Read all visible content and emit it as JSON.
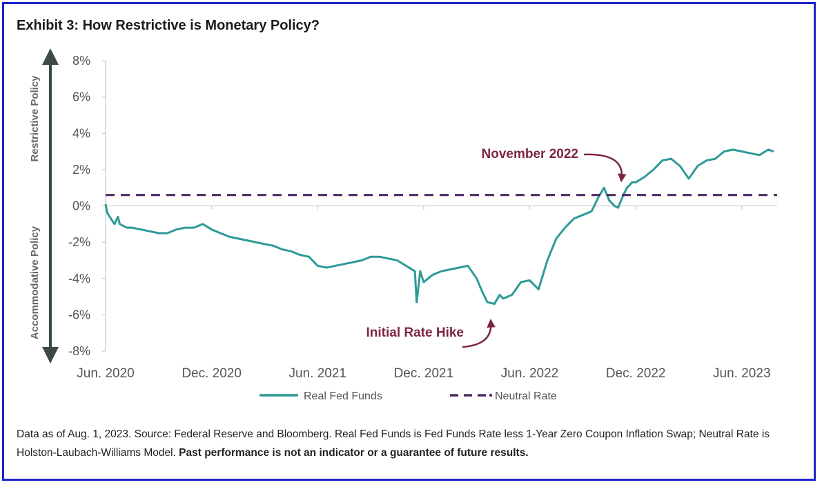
{
  "title": "Exhibit 3: How Restrictive is Monetary Policy?",
  "footnote": {
    "text": "Data as of Aug. 1, 2023. Source: Federal Reserve and Bloomberg. Real Fed Funds is Fed Funds Rate less 1-Year Zero Coupon Inflation Swap; Neutral Rate is Holston-Laubach-Williams Model. ",
    "bold": "Past performance is not an indicator or a guarantee of future results."
  },
  "colors": {
    "real": "#2e9a95",
    "neutral": "#4e2a64",
    "annotation": "#7c2446",
    "arrow": "#3d4a45",
    "frame": "#1d22c8"
  },
  "chart_data": {
    "type": "line",
    "title": "Exhibit 3: How Restrictive is Monetary Policy?",
    "xlabel": "",
    "ylabel": "",
    "ylim": [
      -8,
      8
    ],
    "y_ticks": [
      8,
      6,
      4,
      2,
      0,
      -2,
      -4,
      -6,
      -8
    ],
    "y_tick_labels": [
      "8%",
      "6%",
      "4%",
      "2%",
      "0%",
      "-2%",
      "-4%",
      "-6%",
      "-8%"
    ],
    "xlim": [
      0,
      38
    ],
    "x_ticks": [
      0,
      6,
      12,
      18,
      24,
      30,
      36
    ],
    "x_tick_labels": [
      "Jun. 2020",
      "Dec. 2020",
      "Jun. 2021",
      "Dec. 2021",
      "Jun. 2022",
      "Dec. 2022",
      "Jun. 2023"
    ],
    "x_units": "months since Jun. 2020",
    "side_labels": {
      "upper": "Restrictive Policy",
      "lower": "Accommodative Policy"
    },
    "legend": [
      "Real Fed Funds",
      "Neutral Rate"
    ],
    "legend_position": "bottom",
    "annotations": [
      {
        "text": "November 2022",
        "target_x": 29.2,
        "target_y": 1.0
      },
      {
        "text": "Initial Rate Hike",
        "target_x": 21.8,
        "target_y": -6.0
      }
    ],
    "series": [
      {
        "name": "Real Fed Funds",
        "style": "solid",
        "x": [
          0,
          0.1,
          0.3,
          0.5,
          0.7,
          0.8,
          1.0,
          1.2,
          1.5,
          2.0,
          2.5,
          3.0,
          3.5,
          4.0,
          4.5,
          5.0,
          5.5,
          6.0,
          6.5,
          7.0,
          7.5,
          8.0,
          8.5,
          9.0,
          9.5,
          10.0,
          10.5,
          11.0,
          11.5,
          12.0,
          12.5,
          13.0,
          13.5,
          14.0,
          14.5,
          15.0,
          15.5,
          16.0,
          16.5,
          17.0,
          17.5,
          17.6,
          17.8,
          18.0,
          18.5,
          19.0,
          19.5,
          20.0,
          20.5,
          21.0,
          21.3,
          21.6,
          22.0,
          22.3,
          22.5,
          23.0,
          23.5,
          24.0,
          24.5,
          25.0,
          25.5,
          26.0,
          26.5,
          27.0,
          27.5,
          27.9,
          28.2,
          28.5,
          28.8,
          29.0,
          29.3,
          29.5,
          29.8,
          30.0,
          30.5,
          31.0,
          31.5,
          32.0,
          32.5,
          33.0,
          33.5,
          34.0,
          34.5,
          35.0,
          35.5,
          36.0,
          36.5,
          37.0,
          37.5,
          37.8
        ],
        "values": [
          0.1,
          -0.4,
          -0.7,
          -1.0,
          -0.6,
          -1.0,
          -1.1,
          -1.2,
          -1.2,
          -1.3,
          -1.4,
          -1.5,
          -1.5,
          -1.3,
          -1.2,
          -1.2,
          -1.0,
          -1.3,
          -1.5,
          -1.7,
          -1.8,
          -1.9,
          -2.0,
          -2.1,
          -2.2,
          -2.4,
          -2.5,
          -2.7,
          -2.8,
          -3.3,
          -3.4,
          -3.3,
          -3.2,
          -3.1,
          -3.0,
          -2.8,
          -2.8,
          -2.9,
          -3.0,
          -3.3,
          -3.6,
          -5.3,
          -3.6,
          -4.2,
          -3.8,
          -3.6,
          -3.5,
          -3.4,
          -3.3,
          -4.0,
          -4.7,
          -5.3,
          -5.4,
          -4.9,
          -5.1,
          -4.9,
          -4.2,
          -4.1,
          -4.6,
          -3.0,
          -1.8,
          -1.2,
          -0.7,
          -0.5,
          -0.3,
          0.5,
          1.0,
          0.3,
          0.0,
          -0.1,
          0.6,
          1.0,
          1.3,
          1.3,
          1.6,
          2.0,
          2.5,
          2.6,
          2.2,
          1.5,
          2.2,
          2.5,
          2.6,
          3.0,
          3.1,
          3.0,
          2.9,
          2.8,
          3.1,
          3.0
        ]
      },
      {
        "name": "Neutral Rate",
        "style": "dashed",
        "x": [
          0,
          38
        ],
        "values": [
          0.6,
          0.6
        ]
      }
    ]
  }
}
